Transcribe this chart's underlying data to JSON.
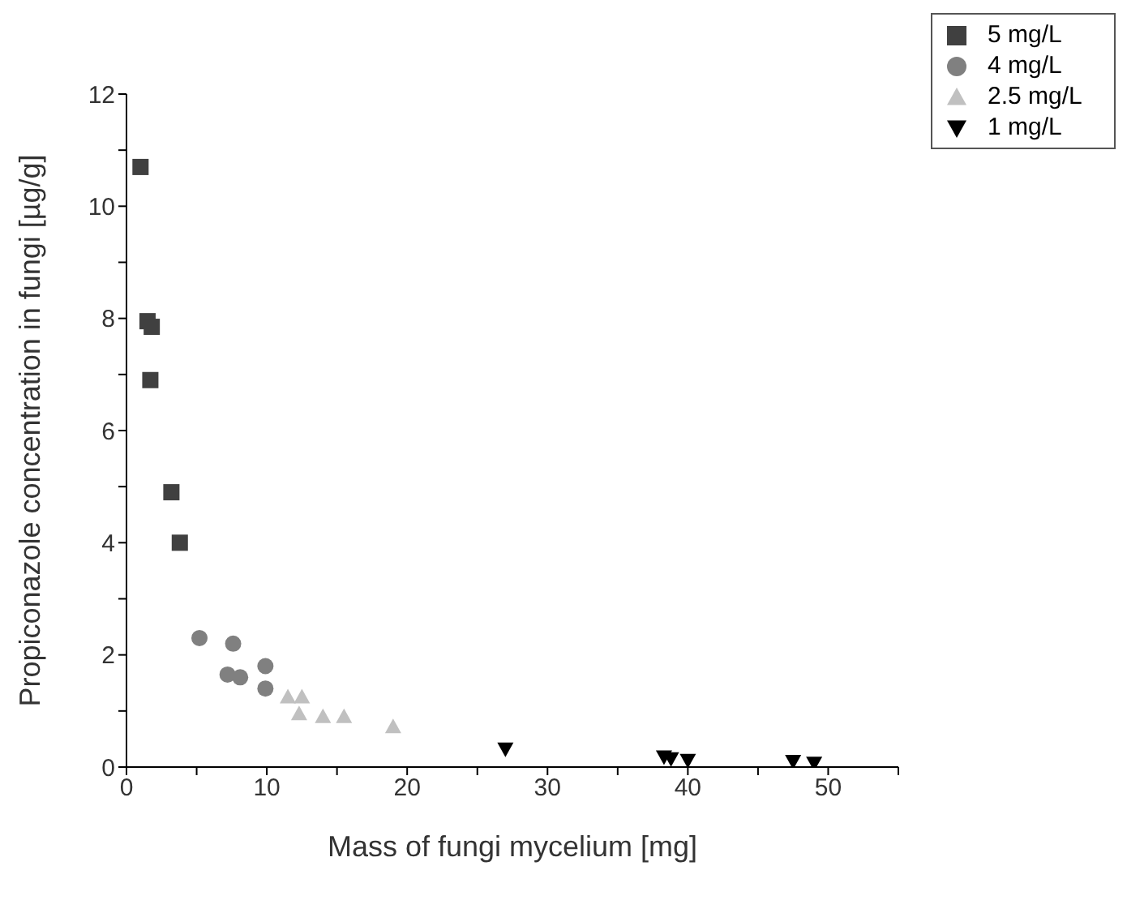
{
  "chart_data": {
    "type": "scatter",
    "xlabel": "Mass of fungi mycelium [mg]",
    "ylabel": "Propiconazole concentration in fungi [µg/g]",
    "xlim": [
      0,
      55
    ],
    "xticks": [
      0,
      {
        "value": 5,
        "label": null
      },
      10,
      {
        "value": 15,
        "label": null
      },
      20,
      {
        "value": 25,
        "label": null
      },
      30,
      {
        "value": 35,
        "label": null
      },
      40,
      {
        "value": 45,
        "label": null
      },
      50,
      {
        "value": 55,
        "label": null
      }
    ],
    "ylim": [
      0,
      12
    ],
    "yticks": [
      0,
      {
        "value": 1,
        "label": null
      },
      2,
      {
        "value": 3,
        "label": null
      },
      4,
      {
        "value": 5,
        "label": null
      },
      6,
      {
        "value": 7,
        "label": null
      },
      8,
      {
        "value": 9,
        "label": null
      },
      10,
      {
        "value": 11,
        "label": null
      },
      12
    ],
    "grid": false,
    "legend": "top right",
    "series": [
      {
        "name": "5 mg/L",
        "color": "#404040",
        "marker": "square",
        "x": [
          1.0,
          1.5,
          1.8,
          1.7,
          3.2,
          3.8
        ],
        "values": [
          10.7,
          7.95,
          7.85,
          6.9,
          4.9,
          4.0
        ]
      },
      {
        "name": "4 mg/L",
        "color": "#808080",
        "marker": "circle",
        "x": [
          5.2,
          7.2,
          7.6,
          8.1,
          9.9,
          9.9
        ],
        "values": [
          2.3,
          1.65,
          2.2,
          1.6,
          1.8,
          1.4
        ]
      },
      {
        "name": "2.5 mg/L",
        "color": "#c0c0c0",
        "marker": "triangle",
        "x": [
          11.5,
          12.5,
          12.3,
          14,
          15.5,
          19
        ],
        "values": [
          1.25,
          1.25,
          0.95,
          0.9,
          0.9,
          0.72
        ]
      },
      {
        "name": "1 mg/L",
        "color": "#000000",
        "marker": "triangle-down",
        "x": [
          27,
          38.3,
          38.8,
          40,
          47.5,
          49
        ],
        "values": [
          0.32,
          0.18,
          0.15,
          0.12,
          0.1,
          0.07
        ]
      }
    ]
  }
}
